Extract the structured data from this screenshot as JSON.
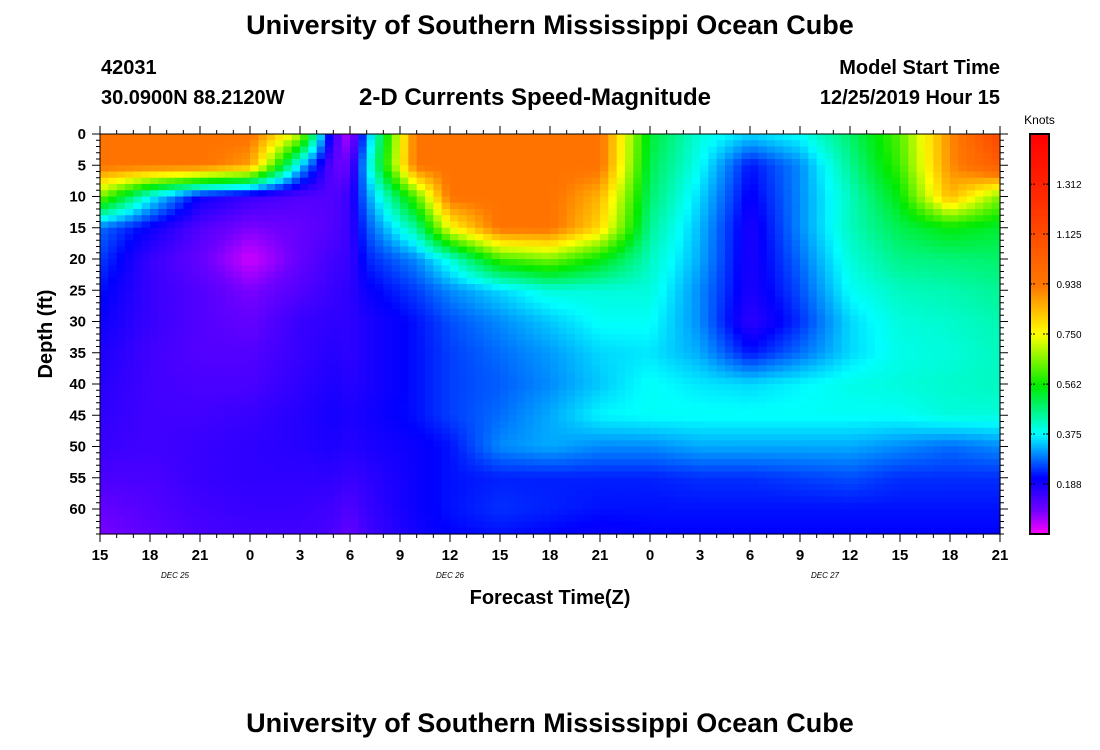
{
  "header": {
    "title": "University of Southern Mississippi Ocean Cube",
    "station_id": "42031",
    "coords": "30.0900N 88.2120W",
    "subtitle": "2-D Currents Speed-Magnitude",
    "model_start_label": "Model Start Time",
    "model_start_value": "12/25/2019 Hour 15"
  },
  "footer": {
    "title": "University of Southern Mississippi Ocean Cube"
  },
  "chart_data": {
    "type": "heatmap",
    "title": "2-D Currents Speed-Magnitude",
    "xlabel": "Forecast Time(Z)",
    "ylabel": "Depth (ft)",
    "x_hours": [
      0,
      54
    ],
    "x_ticks": [
      {
        "h": 0,
        "label": "15"
      },
      {
        "h": 3,
        "label": "18"
      },
      {
        "h": 6,
        "label": "21"
      },
      {
        "h": 9,
        "label": "0"
      },
      {
        "h": 12,
        "label": "3"
      },
      {
        "h": 15,
        "label": "6"
      },
      {
        "h": 18,
        "label": "9"
      },
      {
        "h": 21,
        "label": "12"
      },
      {
        "h": 24,
        "label": "15"
      },
      {
        "h": 27,
        "label": "18"
      },
      {
        "h": 30,
        "label": "21"
      },
      {
        "h": 33,
        "label": "0"
      },
      {
        "h": 36,
        "label": "3"
      },
      {
        "h": 39,
        "label": "6"
      },
      {
        "h": 42,
        "label": "9"
      },
      {
        "h": 45,
        "label": "12"
      },
      {
        "h": 48,
        "label": "15"
      },
      {
        "h": 51,
        "label": "18"
      },
      {
        "h": 54,
        "label": "21"
      }
    ],
    "date_labels": [
      {
        "h": 4.5,
        "label": "DEC 25"
      },
      {
        "h": 21,
        "label": "DEC 26"
      },
      {
        "h": 43.5,
        "label": "DEC 27"
      }
    ],
    "ylim": [
      0,
      64
    ],
    "y_ticks": [
      0,
      5,
      10,
      15,
      20,
      25,
      30,
      35,
      40,
      45,
      50,
      55,
      60
    ],
    "colorbar": {
      "units": "Knots",
      "range": [
        0,
        1.5
      ],
      "tick_values": [
        0.188,
        0.375,
        0.562,
        0.75,
        0.938,
        1.125,
        1.312
      ],
      "tick_labels": [
        "0.188",
        "0.375",
        "0.562",
        "0.750",
        "0.938",
        "1.125",
        "1.312"
      ]
    },
    "speed_grid": {
      "hours": [
        0,
        3,
        6,
        9,
        12,
        14,
        15,
        16,
        19,
        21,
        24,
        27,
        30,
        33,
        36,
        39,
        42,
        45,
        48,
        51,
        54
      ],
      "depths": [
        0,
        5,
        10,
        15,
        20,
        25,
        30,
        35,
        40,
        45,
        50,
        55,
        60,
        64
      ],
      "rows": [
        [
          0.95,
          0.95,
          0.95,
          0.95,
          0.7,
          0.15,
          0.03,
          0.3,
          0.95,
          0.95,
          0.95,
          0.95,
          0.95,
          0.52,
          0.4,
          0.35,
          0.38,
          0.48,
          0.62,
          0.9,
          1.15
        ],
        [
          0.95,
          0.95,
          0.95,
          0.88,
          0.35,
          0.1,
          0.1,
          0.35,
          0.95,
          0.95,
          0.95,
          0.95,
          0.95,
          0.5,
          0.38,
          0.22,
          0.3,
          0.45,
          0.6,
          0.9,
          1.05
        ],
        [
          0.65,
          0.38,
          0.2,
          0.15,
          0.12,
          0.12,
          0.15,
          0.3,
          0.62,
          0.95,
          0.95,
          0.95,
          0.85,
          0.48,
          0.35,
          0.2,
          0.3,
          0.42,
          0.55,
          0.85,
          0.65
        ],
        [
          0.28,
          0.2,
          0.12,
          0.08,
          0.1,
          0.12,
          0.15,
          0.26,
          0.45,
          0.75,
          0.95,
          0.95,
          0.8,
          0.45,
          0.33,
          0.18,
          0.3,
          0.42,
          0.5,
          0.55,
          0.52
        ],
        [
          0.25,
          0.15,
          0.1,
          0.03,
          0.1,
          0.14,
          0.15,
          0.23,
          0.3,
          0.4,
          0.6,
          0.65,
          0.55,
          0.42,
          0.32,
          0.18,
          0.28,
          0.4,
          0.46,
          0.47,
          0.48
        ],
        [
          0.22,
          0.15,
          0.12,
          0.08,
          0.12,
          0.15,
          0.16,
          0.2,
          0.25,
          0.3,
          0.35,
          0.4,
          0.4,
          0.4,
          0.3,
          0.18,
          0.26,
          0.38,
          0.42,
          0.43,
          0.45
        ],
        [
          0.2,
          0.15,
          0.12,
          0.1,
          0.15,
          0.16,
          0.16,
          0.18,
          0.22,
          0.26,
          0.3,
          0.34,
          0.38,
          0.38,
          0.3,
          0.16,
          0.24,
          0.35,
          0.4,
          0.41,
          0.43
        ],
        [
          0.18,
          0.14,
          0.12,
          0.12,
          0.15,
          0.17,
          0.16,
          0.18,
          0.22,
          0.25,
          0.28,
          0.31,
          0.35,
          0.36,
          0.32,
          0.22,
          0.28,
          0.35,
          0.39,
          0.4,
          0.42
        ],
        [
          0.17,
          0.14,
          0.13,
          0.13,
          0.16,
          0.18,
          0.17,
          0.18,
          0.22,
          0.25,
          0.27,
          0.3,
          0.34,
          0.38,
          0.36,
          0.35,
          0.37,
          0.39,
          0.4,
          0.41,
          0.42
        ],
        [
          0.16,
          0.14,
          0.14,
          0.15,
          0.17,
          0.19,
          0.18,
          0.19,
          0.22,
          0.25,
          0.28,
          0.32,
          0.37,
          0.38,
          0.38,
          0.38,
          0.38,
          0.38,
          0.38,
          0.4,
          0.4
        ],
        [
          0.15,
          0.14,
          0.15,
          0.16,
          0.17,
          0.18,
          0.17,
          0.18,
          0.2,
          0.22,
          0.3,
          0.32,
          0.3,
          0.3,
          0.32,
          0.32,
          0.32,
          0.32,
          0.3,
          0.28,
          0.3
        ],
        [
          0.13,
          0.13,
          0.15,
          0.16,
          0.16,
          0.16,
          0.15,
          0.16,
          0.2,
          0.22,
          0.23,
          0.23,
          0.23,
          0.23,
          0.24,
          0.24,
          0.25,
          0.26,
          0.24,
          0.24,
          0.24
        ],
        [
          0.1,
          0.12,
          0.14,
          0.15,
          0.15,
          0.14,
          0.12,
          0.15,
          0.2,
          0.22,
          0.24,
          0.23,
          0.22,
          0.22,
          0.22,
          0.22,
          0.22,
          0.22,
          0.22,
          0.22,
          0.22
        ],
        [
          0.08,
          0.11,
          0.13,
          0.14,
          0.14,
          0.13,
          0.1,
          0.14,
          0.19,
          0.21,
          0.22,
          0.21,
          0.2,
          0.21,
          0.21,
          0.21,
          0.21,
          0.21,
          0.21,
          0.21,
          0.21
        ]
      ]
    }
  }
}
